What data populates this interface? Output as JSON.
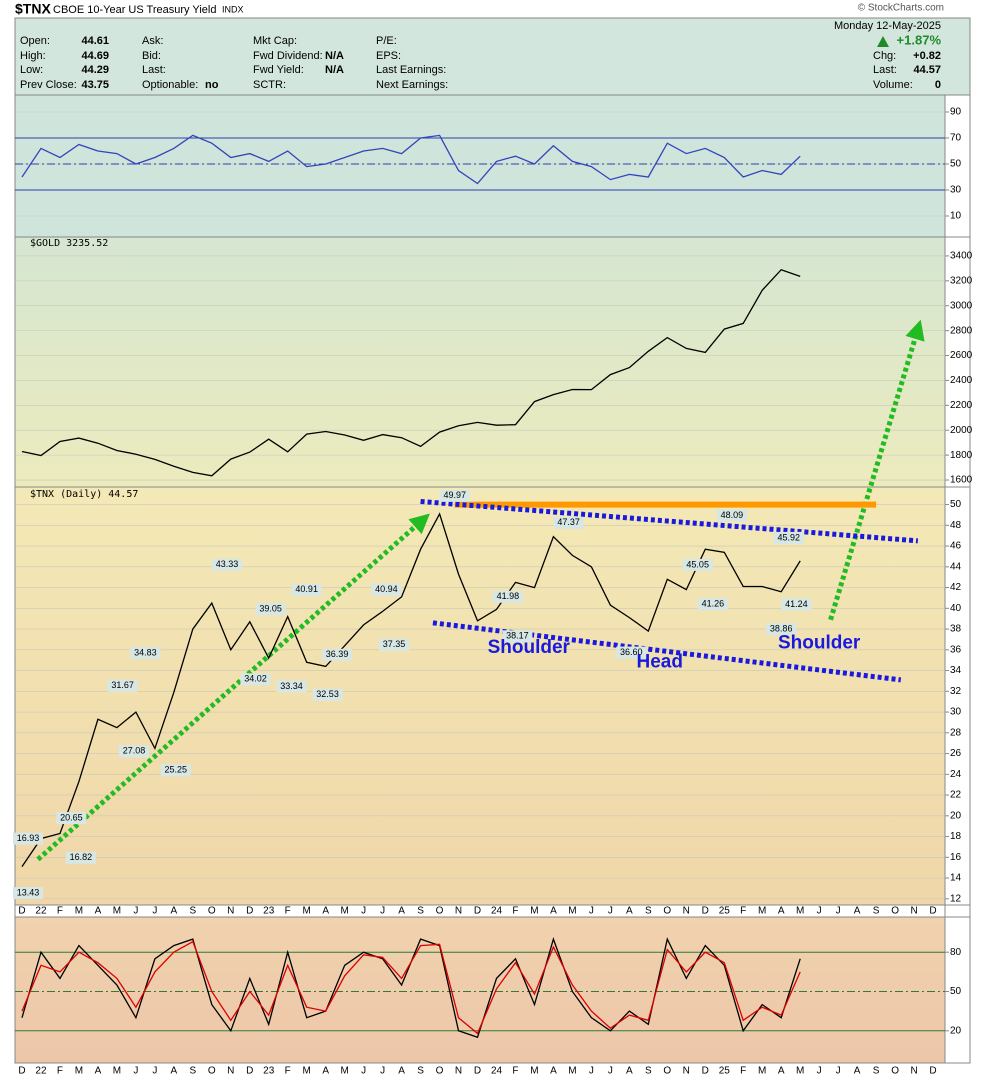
{
  "header": {
    "symbol": "$TNX",
    "name": "CBOE 10-Year US Treasury Yield",
    "exchange": "INDX",
    "source": "© StockCharts.com",
    "date": "Monday  12-May-2025",
    "change_pct": "+1.87%",
    "columns": [
      [
        {
          "label": "Open:",
          "value": 44.61
        },
        {
          "label": "High:",
          "value": 44.69
        },
        {
          "label": "Low:",
          "value": 44.29
        },
        {
          "label": "Prev Close:",
          "value": 43.75
        }
      ],
      [
        {
          "label": "Ask:"
        },
        {
          "label": "Bid:"
        },
        {
          "label": "Last:"
        },
        {
          "label": "Optionable:",
          "value": "no"
        }
      ],
      [
        {
          "label": "Mkt Cap:"
        },
        {
          "label": "Fwd Dividend:",
          "value": "N/A"
        },
        {
          "label": "Fwd Yield:",
          "value": "N/A"
        },
        {
          "label": "SCTR:"
        }
      ],
      [
        {
          "label": "P/E:"
        },
        {
          "label": "EPS:"
        },
        {
          "label": "Last Earnings:"
        },
        {
          "label": "Next Earnings:"
        }
      ]
    ],
    "right": [
      {
        "label": "Chg:",
        "value": "+0.82"
      },
      {
        "label": "Last:",
        "value": 44.57
      },
      {
        "label": "Volume:",
        "value": 0
      }
    ]
  },
  "chart_data": [
    {
      "type": "line",
      "ylim": [
        0,
        100
      ],
      "yticks": [
        10,
        30,
        50,
        70,
        90
      ],
      "grid": true,
      "reference_color": "#2f3fae",
      "reference_lines": [
        {
          "value": 30,
          "style": "solid"
        },
        {
          "value": 50,
          "style": "dashdot"
        },
        {
          "value": 70,
          "style": "solid"
        }
      ],
      "series": [
        {
          "color": "#3344bb",
          "values": [
            40,
            62,
            55,
            65,
            60,
            58,
            50,
            55,
            62,
            72,
            66,
            55,
            58,
            52,
            60,
            48,
            50,
            55,
            60,
            62,
            58,
            70,
            72,
            45,
            35,
            52,
            56,
            50,
            64,
            52,
            48,
            38,
            42,
            40,
            66,
            58,
            62,
            55,
            40,
            45,
            42,
            56,
            null,
            null,
            null,
            null,
            null,
            null,
            null
          ]
        }
      ]
    },
    {
      "type": "line",
      "title": "$GOLD 3235.52",
      "ylim": [
        1560,
        3560
      ],
      "yticks": [
        1600,
        1800,
        2000,
        2200,
        2400,
        2600,
        2800,
        3000,
        3200,
        3400
      ],
      "grid": true,
      "series": [
        {
          "color": "#000000",
          "values": [
            1829,
            1797,
            1909,
            1937,
            1896,
            1837,
            1807,
            1766,
            1711,
            1661,
            1634,
            1768,
            1824,
            1928,
            1827,
            1969,
            1990,
            1962,
            1919,
            1965,
            1940,
            1870,
            1985,
            2036,
            2063,
            2040,
            2044,
            2230,
            2286,
            2327,
            2326,
            2447,
            2503,
            2634,
            2744,
            2657,
            2625,
            2812,
            2858,
            3124,
            3289,
            3235.52,
            null,
            null,
            null,
            null,
            null,
            null,
            null
          ]
        }
      ]
    },
    {
      "type": "line",
      "title": "$TNX (Daily) 44.57",
      "ylim": [
        11.5,
        51.5
      ],
      "yticks": [
        12,
        14,
        16,
        18,
        20,
        22,
        24,
        26,
        28,
        30,
        32,
        34,
        36,
        38,
        40,
        42,
        44,
        46,
        48,
        50
      ],
      "grid": true,
      "categories": [
        "D",
        "22",
        "F",
        "M",
        "A",
        "M",
        "J",
        "J",
        "A",
        "S",
        "O",
        "N",
        "D",
        "23",
        "F",
        "M",
        "A",
        "M",
        "J",
        "J",
        "A",
        "S",
        "O",
        "N",
        "D",
        "24",
        "F",
        "M",
        "A",
        "M",
        "J",
        "J",
        "A",
        "S",
        "O",
        "N",
        "D",
        "25",
        "F",
        "M",
        "A",
        "M",
        "J",
        "J",
        "A",
        "S",
        "O",
        "N",
        "D"
      ],
      "series": [
        {
          "color": "#000000",
          "values": [
            15.1,
            17.8,
            18.3,
            23.3,
            29.3,
            28.5,
            30.0,
            26.5,
            31.9,
            38.0,
            40.5,
            36.0,
            38.7,
            35.2,
            39.2,
            34.8,
            34.4,
            36.4,
            38.4,
            39.7,
            41.1,
            45.7,
            49.1,
            43.3,
            38.8,
            39.9,
            42.5,
            42.0,
            46.9,
            45.1,
            44.0,
            40.3,
            39.1,
            37.8,
            42.8,
            41.8,
            45.7,
            45.4,
            42.1,
            42.1,
            41.6,
            44.57,
            null,
            null,
            null,
            null,
            null,
            null,
            null
          ]
        }
      ],
      "price_labels": [
        {
          "x": 0.2,
          "value": 13.43
        },
        {
          "x": 0,
          "value": 16.93
        },
        {
          "x": 3.1,
          "value": 16.82
        },
        {
          "x": 2.6,
          "value": 20.65
        },
        {
          "x": 5.3,
          "value": 31.67
        },
        {
          "x": 5.9,
          "value": 27.08
        },
        {
          "x": 6.5,
          "value": 34.83
        },
        {
          "x": 8.1,
          "value": 25.25
        },
        {
          "x": 10.8,
          "value": 43.33
        },
        {
          "x": 13.1,
          "value": 39.05
        },
        {
          "x": 12.3,
          "value": 34.02
        },
        {
          "x": 14.2,
          "value": 33.34
        },
        {
          "x": 15.0,
          "value": 40.91
        },
        {
          "x": 16.6,
          "value": 36.39
        },
        {
          "x": 16.1,
          "value": 32.53
        },
        {
          "x": 19.2,
          "value": 40.94
        },
        {
          "x": 19.6,
          "value": 37.35
        },
        {
          "x": 22.8,
          "value": 49.97
        },
        {
          "x": 25.6,
          "value": 41.98
        },
        {
          "x": 26.1,
          "value": 38.17
        },
        {
          "x": 28.8,
          "value": 47.37
        },
        {
          "x": 32.1,
          "value": 36.6,
          "label": "36.60"
        },
        {
          "x": 36.4,
          "value": 41.26
        },
        {
          "x": 35.6,
          "value": 45.05
        },
        {
          "x": 37.4,
          "value": 48.09
        },
        {
          "x": 40.4,
          "value": 45.92
        },
        {
          "x": 40.8,
          "value": 41.24
        },
        {
          "x": 40.0,
          "value": 38.86
        }
      ],
      "trend_lines": [
        {
          "x": [
            0.84,
            21.1
          ],
          "y": [
            15.8,
            48.5
          ],
          "color": "#22bb22",
          "arrow": true
        },
        {
          "x": [
            42.6,
            47.2
          ],
          "y": [
            38.9,
            66.9
          ],
          "color": "#22bb22",
          "arrow": true
        },
        {
          "x": [
            22.8,
            45.0
          ],
          "y": [
            50,
            50
          ],
          "color": "#ff9900",
          "arrow": false
        },
        {
          "x": [
            21.0,
            47.2
          ],
          "y": [
            50.3,
            46.5
          ],
          "color": "#1a1adf",
          "arrow": false
        },
        {
          "x": [
            21.65,
            46.3
          ],
          "y": [
            38.6,
            33.1
          ],
          "color": "#1a1adf",
          "arrow": false
        }
      ],
      "text_annotations": [
        {
          "text": "Shoulder",
          "x": 26.7,
          "y": 36.2
        },
        {
          "text": "Head",
          "x": 33.6,
          "y": 34.8
        },
        {
          "text": "Shoulder",
          "x": 42.0,
          "y": 36.6
        }
      ]
    },
    {
      "type": "line",
      "ylim": [
        0,
        100
      ],
      "yticks": [
        20,
        50,
        80
      ],
      "grid": false,
      "reference_color": "#2e7d32",
      "reference_lines": [
        {
          "value": 20,
          "style": "solid"
        },
        {
          "value": 50,
          "style": "dashdot"
        },
        {
          "value": 80,
          "style": "solid"
        }
      ],
      "categories": [
        "D",
        "22",
        "F",
        "M",
        "A",
        "M",
        "J",
        "J",
        "A",
        "S",
        "O",
        "N",
        "D",
        "23",
        "F",
        "M",
        "A",
        "M",
        "J",
        "J",
        "A",
        "S",
        "O",
        "N",
        "D",
        "24",
        "F",
        "M",
        "A",
        "M",
        "J",
        "J",
        "A",
        "S",
        "O",
        "N",
        "D",
        "25",
        "F",
        "M",
        "A",
        "M",
        "J",
        "J",
        "A",
        "S",
        "O",
        "N",
        "D"
      ],
      "series": [
        {
          "color": "#000000",
          "values": [
            30,
            80,
            60,
            85,
            70,
            55,
            30,
            75,
            85,
            90,
            40,
            20,
            60,
            25,
            80,
            30,
            35,
            70,
            80,
            75,
            55,
            90,
            85,
            20,
            15,
            60,
            75,
            40,
            90,
            50,
            30,
            20,
            35,
            25,
            90,
            60,
            85,
            70,
            20,
            40,
            30,
            75,
            null,
            null,
            null,
            null,
            null,
            null,
            null
          ]
        },
        {
          "color": "#dd0000",
          "values": [
            35,
            70,
            65,
            80,
            72,
            60,
            38,
            65,
            80,
            88,
            50,
            28,
            50,
            32,
            70,
            38,
            35,
            62,
            78,
            76,
            60,
            85,
            86,
            30,
            18,
            52,
            72,
            48,
            84,
            55,
            35,
            22,
            32,
            28,
            82,
            65,
            80,
            72,
            28,
            38,
            32,
            65,
            null,
            null,
            null,
            null,
            null,
            null,
            null
          ]
        }
      ]
    }
  ]
}
